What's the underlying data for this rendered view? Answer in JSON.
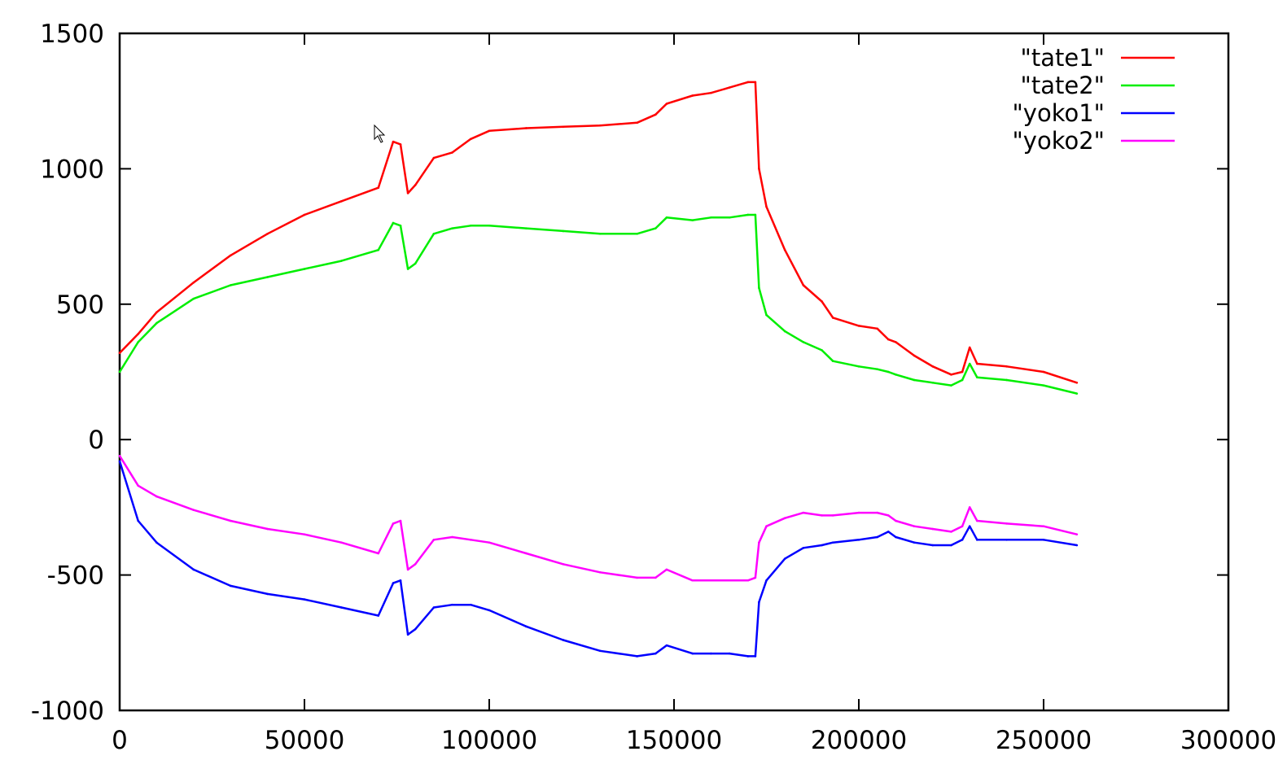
{
  "chart_data": {
    "type": "line",
    "title": "",
    "xlabel": "",
    "ylabel": "",
    "xlim": [
      0,
      300000
    ],
    "ylim": [
      -1000,
      1500
    ],
    "x_ticks": [
      "0",
      "50000",
      "100000",
      "150000",
      "200000",
      "250000",
      "300000"
    ],
    "y_ticks": [
      "1500",
      "1000",
      "500",
      "0",
      "-500",
      "-1000"
    ],
    "grid": false,
    "legend_position": "top-right",
    "series": [
      {
        "name": "\"tate1\"",
        "color": "#ff0000",
        "x": [
          0,
          5000,
          10000,
          20000,
          30000,
          40000,
          50000,
          60000,
          70000,
          74000,
          76000,
          78000,
          80000,
          85000,
          90000,
          95000,
          100000,
          110000,
          120000,
          130000,
          140000,
          145000,
          148000,
          155000,
          160000,
          165000,
          170000,
          172000,
          173000,
          175000,
          180000,
          185000,
          190000,
          193000,
          200000,
          205000,
          208000,
          210000,
          215000,
          220000,
          225000,
          228000,
          230000,
          232000,
          240000,
          250000,
          259000
        ],
        "y": [
          320,
          390,
          470,
          580,
          680,
          760,
          830,
          880,
          930,
          1100,
          1090,
          910,
          940,
          1040,
          1060,
          1110,
          1140,
          1150,
          1155,
          1160,
          1170,
          1200,
          1240,
          1270,
          1280,
          1300,
          1320,
          1320,
          1000,
          860,
          700,
          570,
          510,
          450,
          420,
          410,
          370,
          360,
          310,
          270,
          240,
          250,
          340,
          280,
          270,
          250,
          210
        ]
      },
      {
        "name": "\"tate2\"",
        "color": "#00ee00",
        "x": [
          0,
          5000,
          10000,
          20000,
          30000,
          40000,
          50000,
          60000,
          70000,
          74000,
          76000,
          78000,
          80000,
          85000,
          90000,
          95000,
          100000,
          110000,
          120000,
          130000,
          140000,
          145000,
          148000,
          155000,
          160000,
          165000,
          170000,
          172000,
          173000,
          175000,
          180000,
          185000,
          190000,
          193000,
          200000,
          205000,
          208000,
          210000,
          215000,
          220000,
          225000,
          228000,
          230000,
          232000,
          240000,
          250000,
          259000
        ],
        "y": [
          250,
          360,
          430,
          520,
          570,
          600,
          630,
          660,
          700,
          800,
          790,
          630,
          650,
          760,
          780,
          790,
          790,
          780,
          770,
          760,
          760,
          780,
          820,
          810,
          820,
          820,
          830,
          830,
          560,
          460,
          400,
          360,
          330,
          290,
          270,
          260,
          250,
          240,
          220,
          210,
          200,
          220,
          280,
          230,
          220,
          200,
          170
        ]
      },
      {
        "name": "\"yoko1\"",
        "color": "#0000ff",
        "x": [
          0,
          5000,
          10000,
          20000,
          30000,
          40000,
          50000,
          60000,
          70000,
          74000,
          76000,
          78000,
          80000,
          85000,
          90000,
          95000,
          100000,
          110000,
          120000,
          130000,
          140000,
          145000,
          148000,
          155000,
          160000,
          165000,
          170000,
          172000,
          173000,
          175000,
          180000,
          185000,
          190000,
          193000,
          200000,
          205000,
          208000,
          210000,
          215000,
          220000,
          225000,
          228000,
          230000,
          232000,
          240000,
          250000,
          259000
        ],
        "y": [
          -80,
          -300,
          -380,
          -480,
          -540,
          -570,
          -590,
          -620,
          -650,
          -530,
          -520,
          -720,
          -700,
          -620,
          -610,
          -610,
          -630,
          -690,
          -740,
          -780,
          -800,
          -790,
          -760,
          -790,
          -790,
          -790,
          -800,
          -800,
          -600,
          -520,
          -440,
          -400,
          -390,
          -380,
          -370,
          -360,
          -340,
          -360,
          -380,
          -390,
          -390,
          -370,
          -320,
          -370,
          -370,
          -370,
          -390
        ]
      },
      {
        "name": "\"yoko2\"",
        "color": "#ff00ff",
        "x": [
          0,
          5000,
          10000,
          20000,
          30000,
          40000,
          50000,
          60000,
          70000,
          74000,
          76000,
          78000,
          80000,
          85000,
          90000,
          95000,
          100000,
          110000,
          120000,
          130000,
          140000,
          145000,
          148000,
          155000,
          160000,
          165000,
          170000,
          172000,
          173000,
          175000,
          180000,
          185000,
          190000,
          193000,
          200000,
          205000,
          208000,
          210000,
          215000,
          220000,
          225000,
          228000,
          230000,
          232000,
          240000,
          250000,
          259000
        ],
        "y": [
          -60,
          -170,
          -210,
          -260,
          -300,
          -330,
          -350,
          -380,
          -420,
          -310,
          -300,
          -480,
          -460,
          -370,
          -360,
          -370,
          -380,
          -420,
          -460,
          -490,
          -510,
          -510,
          -480,
          -520,
          -520,
          -520,
          -520,
          -510,
          -380,
          -320,
          -290,
          -270,
          -280,
          -280,
          -270,
          -270,
          -280,
          -300,
          -320,
          -330,
          -340,
          -320,
          -250,
          -300,
          -310,
          -320,
          -350
        ]
      }
    ]
  },
  "cursor_icon": "mouse-pointer-icon"
}
